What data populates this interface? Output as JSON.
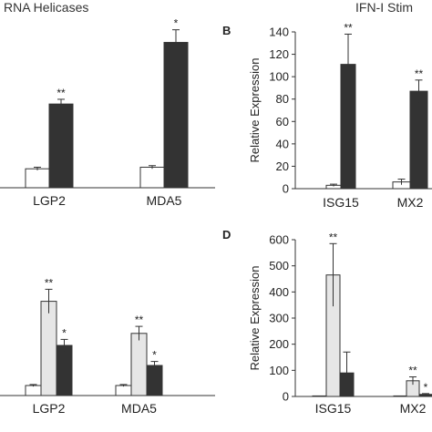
{
  "header": {
    "left": "RNA Helicases",
    "right": "IFN-I Stim"
  },
  "chart_data": [
    {
      "panel": "",
      "type": "bar",
      "categories": [
        "LGP2",
        "MDA5"
      ],
      "series": [
        {
          "values": [
            12,
            13
          ],
          "errors": [
            1,
            1
          ],
          "color": "#ffffff"
        },
        {
          "values": [
            53,
            92
          ],
          "errors": [
            3,
            8
          ],
          "color": "#333333"
        }
      ],
      "annotations": [
        [
          "",
          "**"
        ],
        [
          "",
          "*"
        ]
      ],
      "ylim": [
        0,
        105
      ],
      "ylabel": "",
      "yticks": []
    },
    {
      "panel": "B",
      "type": "bar",
      "categories": [
        "ISG15",
        "MX2"
      ],
      "series": [
        {
          "values": [
            3,
            6
          ],
          "errors": [
            1,
            2.5
          ],
          "color": "#ffffff"
        },
        {
          "values": [
            111,
            87
          ],
          "errors": [
            27,
            10
          ],
          "color": "#333333"
        }
      ],
      "annotations": [
        [
          "",
          "**"
        ],
        [
          "",
          "**"
        ]
      ],
      "ylim": [
        0,
        140
      ],
      "ylabel": "Relative Expression",
      "yticks": [
        0,
        20,
        40,
        60,
        80,
        100,
        120,
        140
      ]
    },
    {
      "panel": "",
      "type": "bar",
      "categories": [
        "LGP2",
        "MDA5"
      ],
      "series": [
        {
          "values": [
            5,
            5
          ],
          "errors": [
            0.5,
            0.5
          ],
          "color": "#ffffff"
        },
        {
          "values": [
            47,
            31
          ],
          "errors": [
            6,
            3.5
          ],
          "color": "#e6e6e6"
        },
        {
          "values": [
            25,
            15
          ],
          "errors": [
            3,
            2
          ],
          "color": "#333333"
        }
      ],
      "annotations": [
        [
          "",
          "**",
          "*"
        ],
        [
          "",
          "**",
          "*"
        ]
      ],
      "ylim": [
        0,
        80
      ],
      "ylabel": "",
      "yticks": []
    },
    {
      "panel": "D",
      "type": "bar",
      "categories": [
        "ISG15",
        "MX2"
      ],
      "series": [
        {
          "values": [
            2,
            2
          ],
          "errors": [
            0,
            0
          ],
          "color": "#ffffff"
        },
        {
          "values": [
            465,
            60
          ],
          "errors": [
            120,
            15
          ],
          "color": "#e6e6e6"
        },
        {
          "values": [
            90,
            8
          ],
          "errors": [
            80,
            3
          ],
          "color": "#333333"
        }
      ],
      "annotations": [
        [
          "",
          "**",
          ""
        ],
        [
          "",
          "**",
          "*"
        ]
      ],
      "ylim": [
        0,
        600
      ],
      "ylabel": "Relative Expression",
      "yticks": [
        0,
        100,
        200,
        300,
        400,
        500,
        600
      ]
    }
  ]
}
